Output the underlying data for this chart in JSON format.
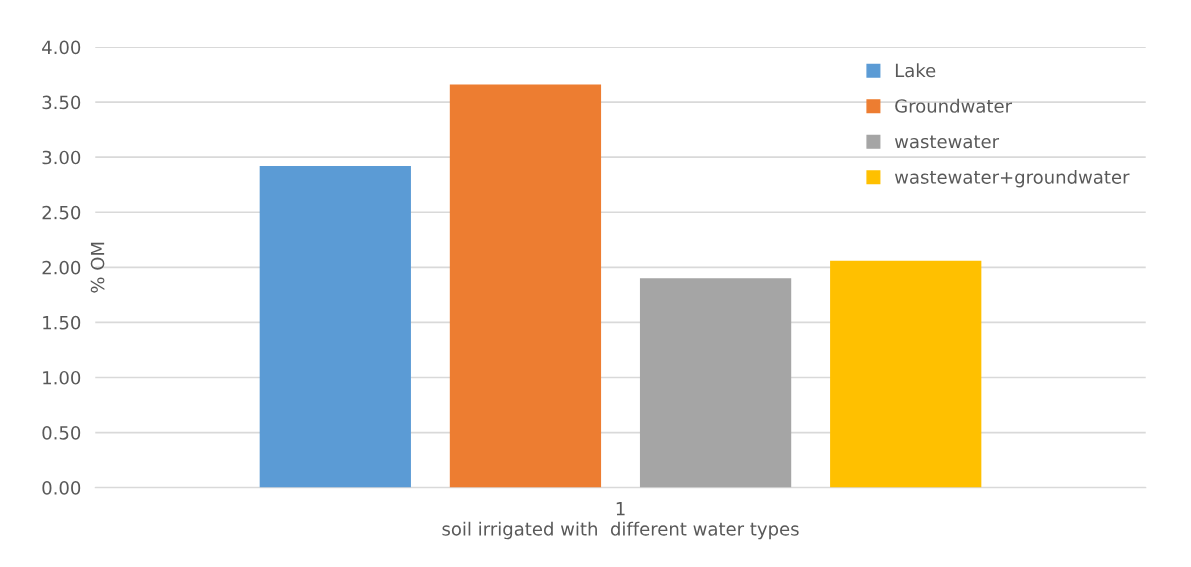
{
  "chart_data": {
    "type": "bar",
    "xlabel": "soil irrigated with  different water types",
    "ylabel": "% OM",
    "categories": [
      "1"
    ],
    "series": [
      {
        "name": "Lake",
        "color": "#5b9bd5",
        "values": [
          2.92
        ]
      },
      {
        "name": "Groundwater",
        "color": "#ed7d31",
        "values": [
          3.66
        ]
      },
      {
        "name": "wastewater",
        "color": "#a5a5a5",
        "values": [
          1.9
        ]
      },
      {
        "name": "wastewater+groundwater",
        "color": "#ffc000",
        "values": [
          2.06
        ]
      }
    ],
    "ylim": [
      0,
      4
    ],
    "yticks": [
      {
        "value": 0,
        "label": "0.00"
      },
      {
        "value": 0.5,
        "label": "0.50"
      },
      {
        "value": 1,
        "label": "1.00"
      },
      {
        "value": 1.5,
        "label": "1.50"
      },
      {
        "value": 2,
        "label": "2.00"
      },
      {
        "value": 2.5,
        "label": "2.50"
      },
      {
        "value": 3,
        "label": "3.00"
      },
      {
        "value": 3.5,
        "label": "3.50"
      },
      {
        "value": 4,
        "label": "4.00"
      }
    ],
    "grid": "y",
    "legend": "top right"
  }
}
